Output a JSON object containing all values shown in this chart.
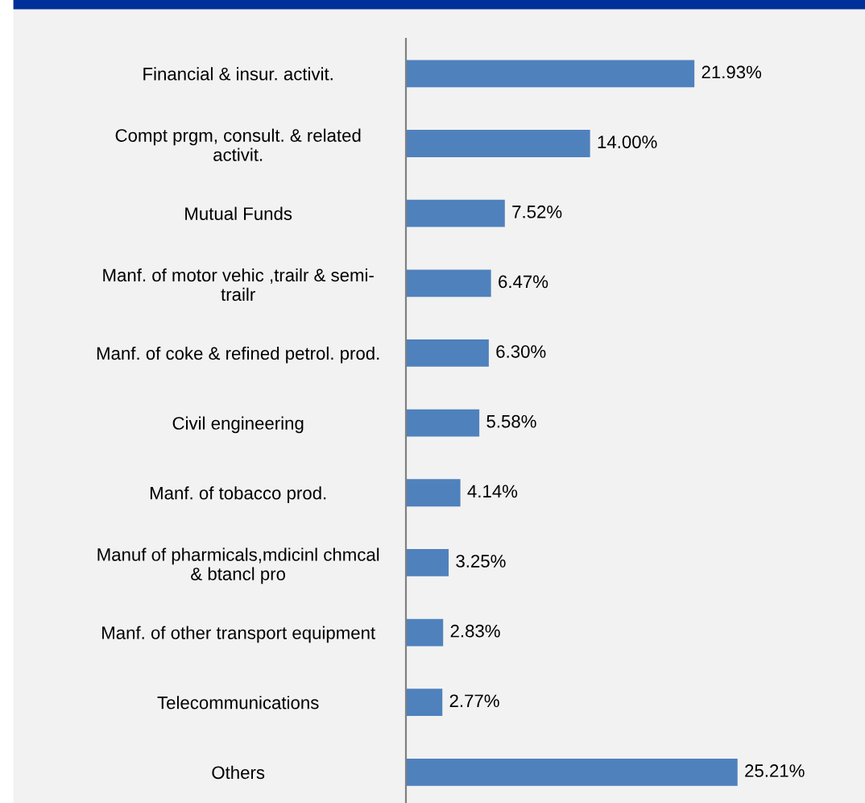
{
  "chart_data": {
    "type": "bar",
    "orientation": "horizontal",
    "relative": false,
    "categories": [
      "Financial & insur. activit.",
      "Compt prgm, consult. & related\nactivit.",
      "Mutual Funds",
      "Manf. of motor vehic ,trailr & semi-\ntrailr",
      "Manf. of coke & refined petrol. prod.",
      "Civil engineering",
      "Manf. of tobacco prod.",
      "Manuf of pharmicals,mdicinl chmcal\n& btancl pro",
      "Manf. of other transport equipment",
      "Telecommunications",
      "Others"
    ],
    "values": [
      21.93,
      14.0,
      7.52,
      6.47,
      6.3,
      5.58,
      4.14,
      3.25,
      2.83,
      2.77,
      25.21
    ],
    "value_labels": [
      "21.93%",
      "14.00%",
      "7.52%",
      "6.47%",
      "6.30%",
      "5.58%",
      "4.14%",
      "3.25%",
      "2.83%",
      "2.77%",
      "25.21%"
    ],
    "color": "#4f81bd",
    "grid": false,
    "legend": false,
    "tick_labels": "y"
  }
}
